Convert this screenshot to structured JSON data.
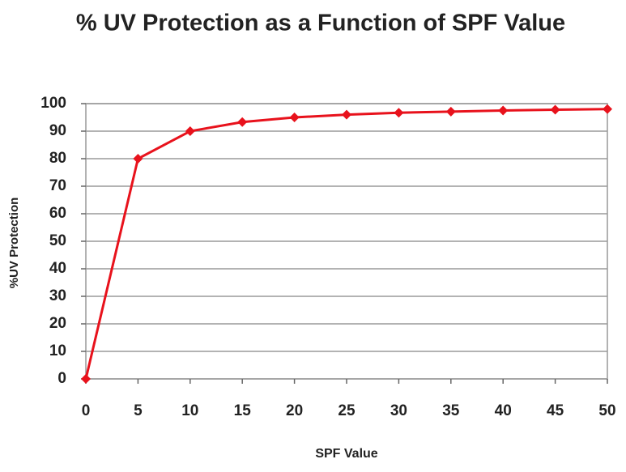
{
  "chart_data": {
    "type": "line",
    "title": "% UV Protection as a Function of SPF Value",
    "x_label": "SPF Value",
    "y_label": "%UV Protection",
    "x": [
      0,
      5,
      10,
      15,
      20,
      25,
      30,
      35,
      40,
      45,
      50
    ],
    "series": [
      {
        "name": "% UV Protection",
        "color": "#e8121c",
        "values": [
          0,
          80,
          90,
          93.3,
          95,
          96,
          96.7,
          97.1,
          97.5,
          97.8,
          98
        ]
      }
    ],
    "xlim": [
      0,
      50
    ],
    "xticks": [
      0,
      5,
      10,
      15,
      20,
      25,
      30,
      35,
      40,
      45,
      50
    ],
    "ylim": [
      0,
      100
    ],
    "yticks": [
      0,
      10,
      20,
      30,
      40,
      50,
      60,
      70,
      80,
      90,
      100
    ],
    "grid": true,
    "legend": false
  }
}
